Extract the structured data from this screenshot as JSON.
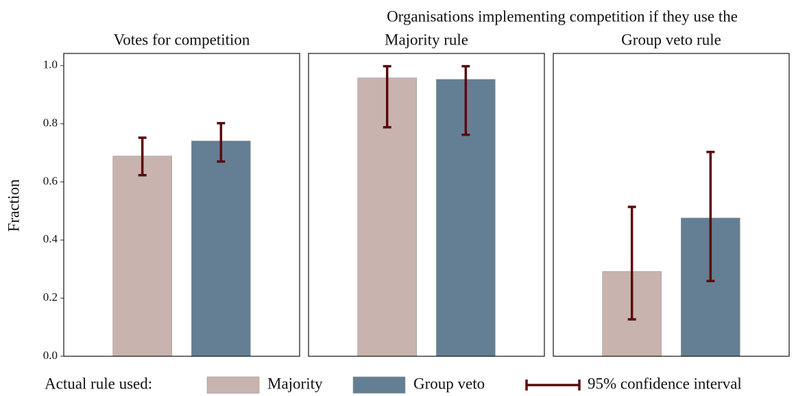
{
  "chart_data": {
    "type": "bar",
    "header": "Organisations implementing competition if they use the",
    "ylabel": "Fraction",
    "categories": [
      "Votes for competition",
      "Majority rule",
      "Group veto rule"
    ],
    "series": [
      {
        "name": "Majority",
        "color": "#c9b3ae",
        "values": [
          0.689,
          0.958,
          0.292
        ],
        "ci_low": [
          0.623,
          0.788,
          0.127
        ],
        "ci_high": [
          0.752,
          0.998,
          0.514
        ]
      },
      {
        "name": "Group veto",
        "color": "#647f93",
        "values": [
          0.741,
          0.953,
          0.476
        ],
        "ci_low": [
          0.67,
          0.762,
          0.259
        ],
        "ci_high": [
          0.802,
          0.998,
          0.703
        ]
      }
    ],
    "ci_label": "95% confidence interval",
    "ci_color": "#5a0a0e",
    "legend_title": "Actual rule used:",
    "ylim": [
      0,
      1.042
    ],
    "yticks": [
      {
        "value": 0,
        "label": "0.0"
      },
      {
        "value": 0.2,
        "label": "0.2"
      },
      {
        "value": 0.4,
        "label": "0.4"
      },
      {
        "value": 0.6,
        "label": "0.6"
      },
      {
        "value": 0.8,
        "label": "0.8"
      },
      {
        "value": 1,
        "label": "1.0"
      }
    ]
  }
}
